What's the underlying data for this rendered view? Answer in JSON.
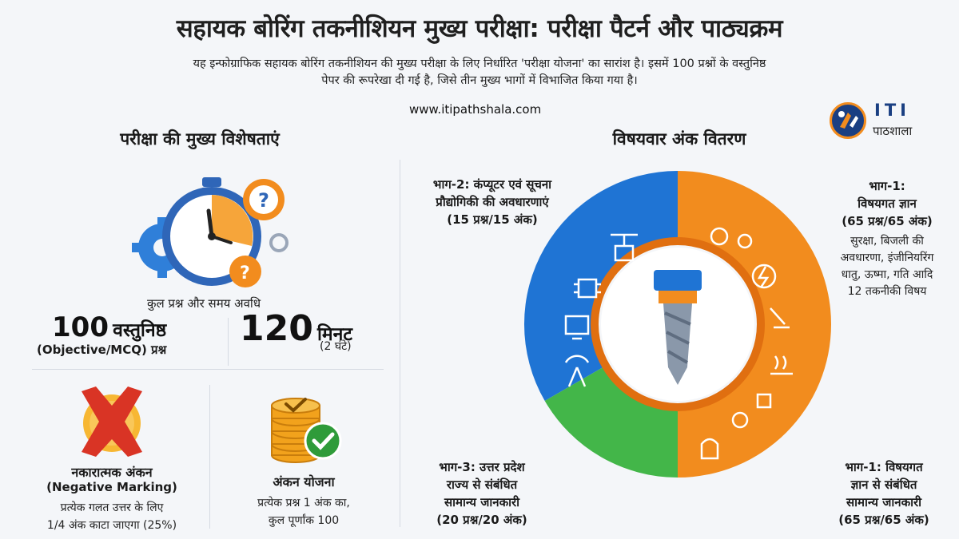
{
  "header": {
    "title": "सहायक बोरिंग तकनीशियन मुख्य परीक्षा: परीक्षा पैटर्न और पाठ्यक्रम",
    "intro_line1": "यह इन्फोग्राफिक सहायक बोरिंग तकनीशियन की मुख्य परीक्षा के लिए निर्धारित 'परीक्षा योजना' का सारांश है। इसमें 100 प्रश्नों के वस्तुनिष्ठ",
    "intro_line2": "पेपर की रूपरेखा दी गई है, जिसे तीन मुख्य भागों में विभाजित किया गया है।",
    "website": "www.itipathshala.com"
  },
  "logo": {
    "brand": "ITI",
    "subtitle": "पाठशाला"
  },
  "left_panel": {
    "heading": "परीक्षा की मुख्य विशेषताएं",
    "time_caption": "कुल प्रश्न और समय अवधि",
    "questions": {
      "number": "100",
      "word": "वस्तुनिष्ठ",
      "sub": "(Objective/MCQ) प्रश्न"
    },
    "duration": {
      "number": "120",
      "word": "मिनट",
      "sub": "(2 घंटे)"
    },
    "negative": {
      "title": "नकारात्मक अंकन",
      "title_en": "(Negative Marking)",
      "line1": "प्रत्येक गलत उत्तर के लिए",
      "line2": "1/4 अंक काटा जाएगा (25%)"
    },
    "marking": {
      "title": "अंकन योजना",
      "line1": "प्रत्येक प्रश्न 1 अंक का,",
      "line2": "कुल पूर्णांक 100"
    }
  },
  "right_panel": {
    "heading": "विषयवार अंक वितरण",
    "part2": {
      "line1": "भाग-2: कंप्यूटर एवं सूचना",
      "line2": "प्रौद्योगिकी की अवधारणाएं",
      "line3": "(15 प्रश्न/15 अंक)"
    },
    "part1_top": {
      "line1": "भाग-1:",
      "line2": "विषयगत ज्ञान",
      "line3": "(65 प्रश्न/65 अंक)",
      "desc1": "सुरक्षा, बिजली की",
      "desc2": "अवधारणा, इंजीनियरिंग",
      "desc3": "धातु, ऊष्मा, गति आदि",
      "desc4": "12 तकनीकी विषय"
    },
    "part3": {
      "line1": "भाग-3: उत्तर प्रदेश",
      "line2": "राज्य से संबंधित",
      "line3": "सामान्य जानकारी",
      "line4": "(20 प्रश्न/20 अंक)"
    },
    "part1_bottom": {
      "line1": "भाग-1: विषयगत",
      "line2": "ज्ञान से संबंधित",
      "line3": "सामान्य जानकारी",
      "line4": "(65 प्रश्न/65 अंक)"
    }
  },
  "colors": {
    "blue": "#1f74d4",
    "orange": "#f28c1e",
    "green": "#43b649",
    "navy": "#1a3f82",
    "red": "#d93425"
  },
  "icons": [
    "stopwatch-icon",
    "gear-icon",
    "question-icon",
    "cross-icon",
    "coin-stack-icon",
    "check-icon",
    "drill-bit-icon",
    "network-icon",
    "chip-icon",
    "computer-icon",
    "antenna-icon",
    "lightning-icon",
    "welding-icon",
    "heat-icon",
    "robot-icon",
    "temple-icon"
  ]
}
